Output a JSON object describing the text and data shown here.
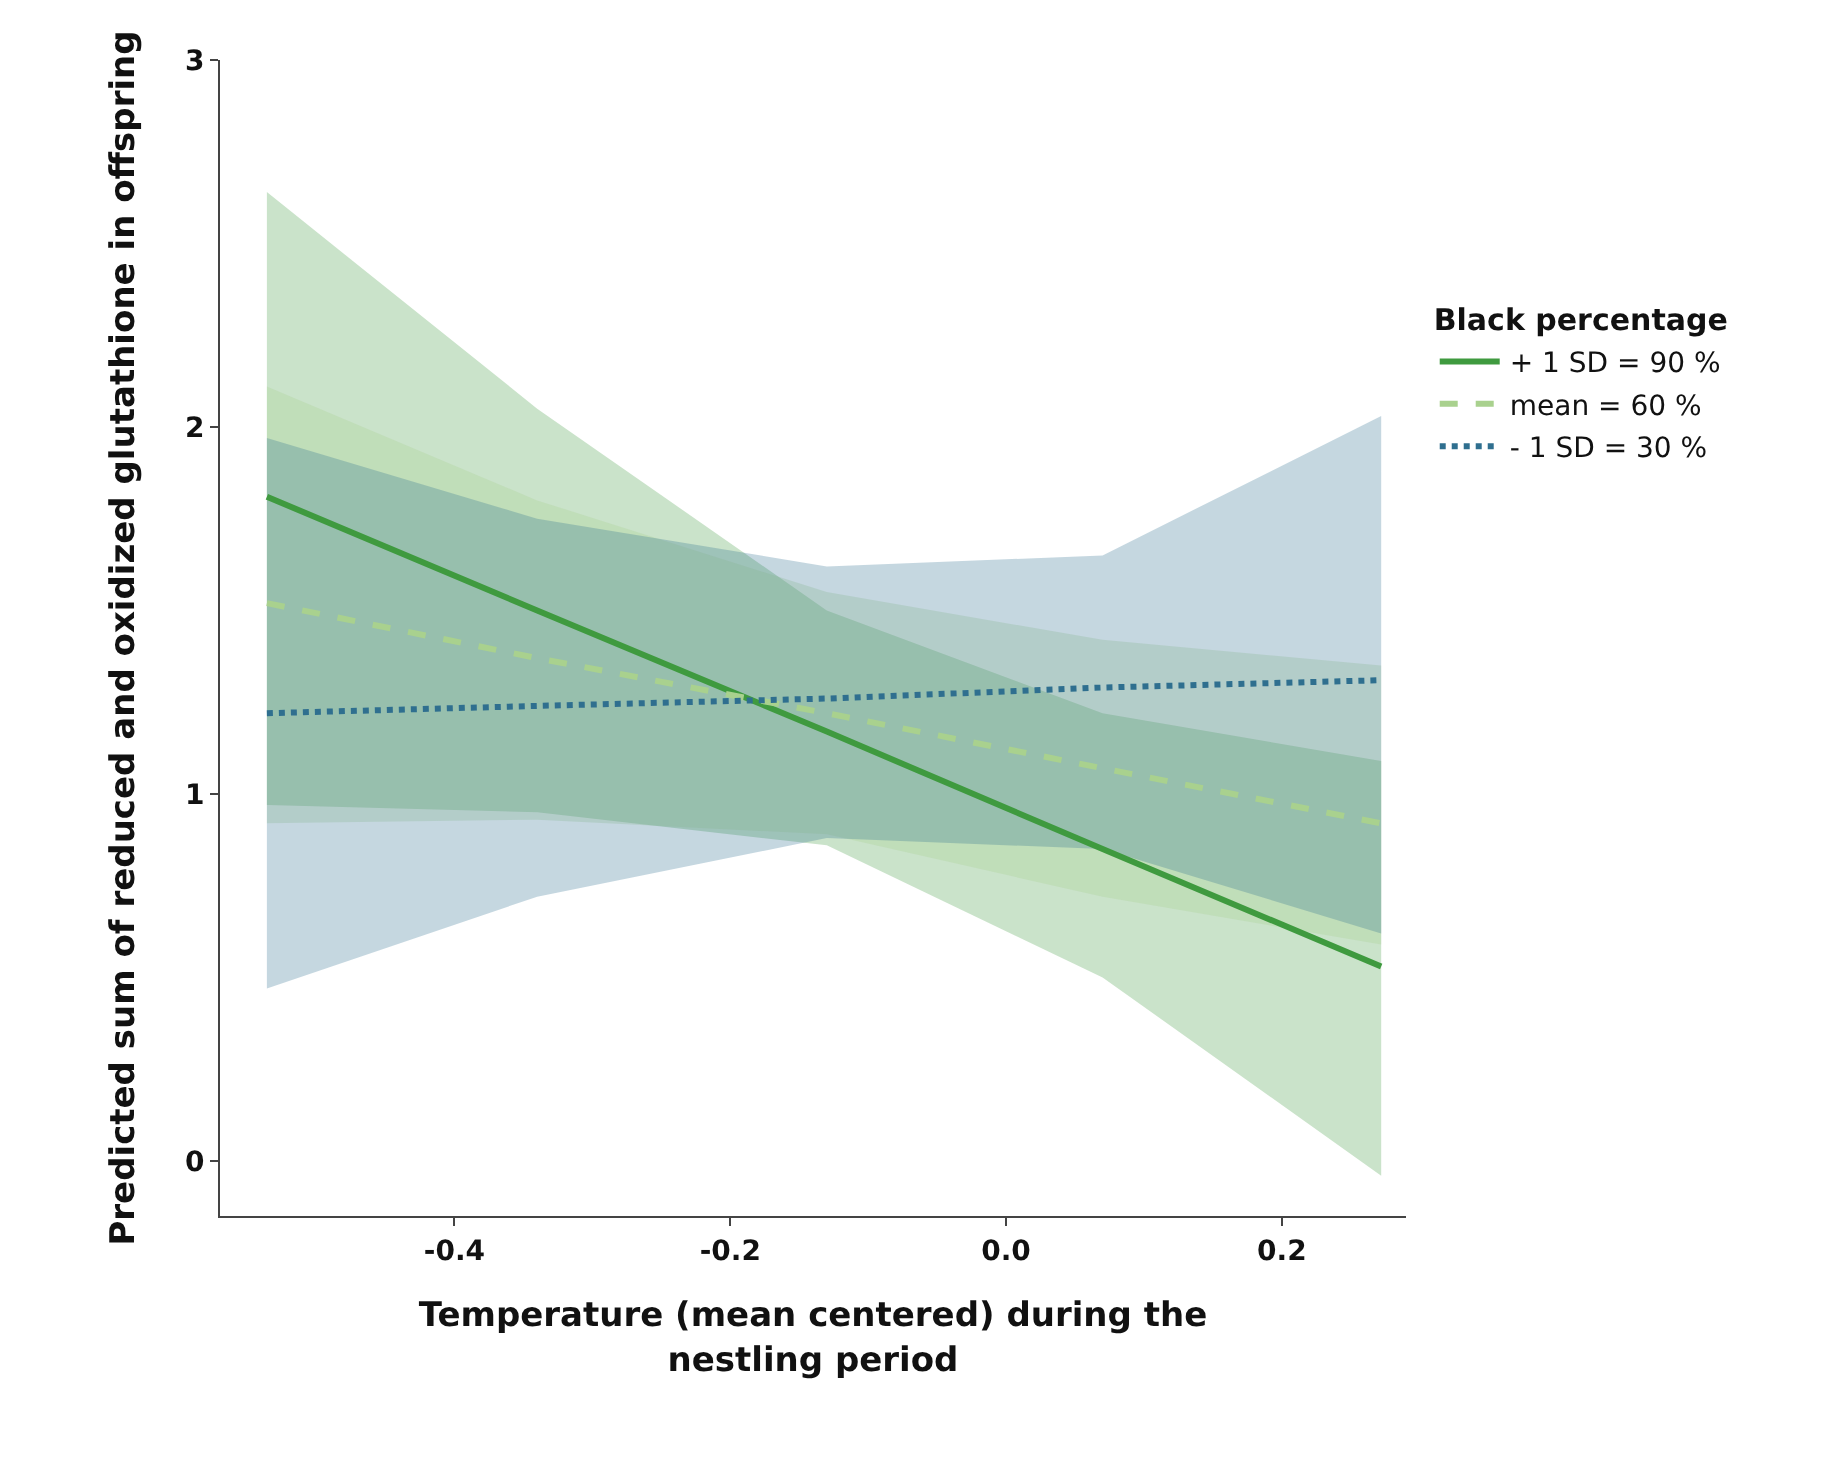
{
  "chart_data": {
    "type": "line",
    "xlabel": "Temperature (mean centered) during the nestling period",
    "ylabel": "Predicted sum of reduced and oxidized glutathione in offspring",
    "legend_title": "Black percentage",
    "legend": "right",
    "grid": false,
    "marker": "none",
    "xlim": [
      -0.57,
      0.29
    ],
    "xticks": [
      -0.4,
      -0.2,
      {
        "value": 0,
        "label": "0.0"
      },
      0.2
    ],
    "ylim": [
      -0.15,
      3
    ],
    "yticks": [
      0,
      1,
      2,
      3
    ],
    "x": [
      -0.536,
      -0.34,
      -0.13,
      0.07,
      0.272
    ],
    "series": [
      {
        "name": "+ 1 SD = 90 %",
        "color": "#3f9a3f",
        "line_style": "solid",
        "values": [
          1.81,
          1.5,
          1.17,
          0.85,
          0.53
        ],
        "lower": [
          0.97,
          0.95,
          0.86,
          0.5,
          -0.04
        ],
        "upper": [
          2.64,
          2.05,
          1.5,
          1.22,
          1.09
        ]
      },
      {
        "name": "mean = 60 %",
        "color": "#a9d18e",
        "line_style": "dashed",
        "values": [
          1.52,
          1.37,
          1.22,
          1.07,
          0.92
        ],
        "lower": [
          0.92,
          0.93,
          0.89,
          0.72,
          0.59
        ],
        "upper": [
          2.11,
          1.8,
          1.55,
          1.42,
          1.35
        ]
      },
      {
        "name": "- 1 SD = 30 %",
        "color": "#2f6f8f",
        "line_style": "dotted",
        "values": [
          1.22,
          1.24,
          1.26,
          1.29,
          1.31
        ],
        "lower": [
          0.47,
          0.72,
          0.88,
          0.85,
          0.62
        ],
        "upper": [
          1.97,
          1.75,
          1.62,
          1.65,
          2.03
        ]
      }
    ]
  }
}
